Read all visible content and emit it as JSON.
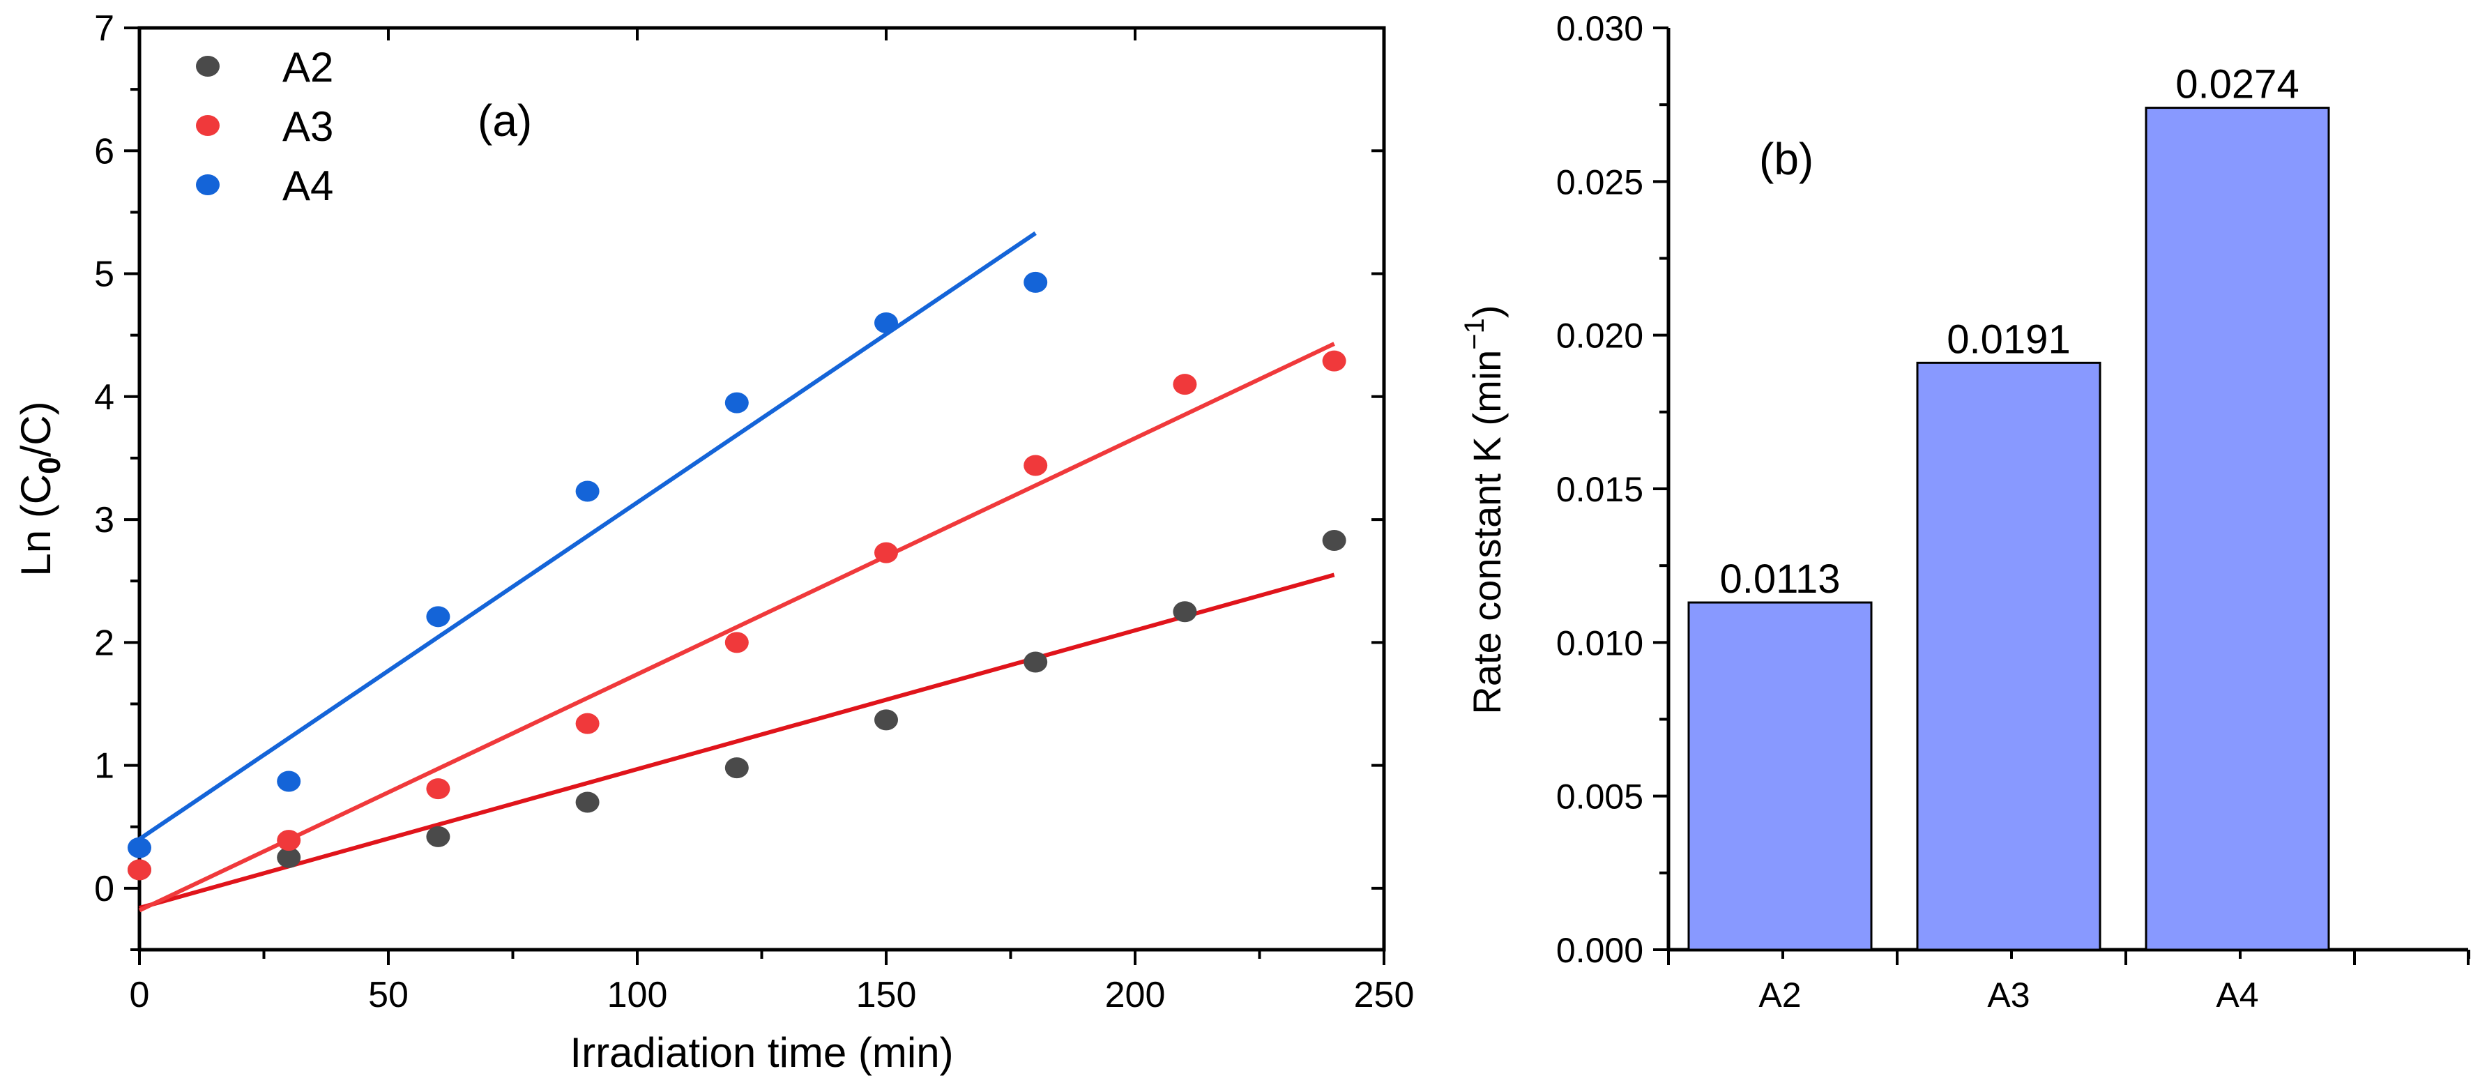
{
  "chart_data": [
    {
      "type": "scatter",
      "panel_label": "(a)",
      "xlabel": "Irradiation time (min)",
      "ylabel": {
        "prefix": "Ln (C",
        "subscript": "0",
        "suffix": "/C)"
      },
      "xlim": [
        0,
        250
      ],
      "ylim": [
        -0.5,
        7
      ],
      "xticks": [
        0,
        50,
        100,
        150,
        200,
        250
      ],
      "yticks": [
        0,
        1,
        2,
        3,
        4,
        5,
        6,
        7
      ],
      "legend_position": "top-left",
      "series": [
        {
          "name": "A2",
          "color": "#4a4a4a",
          "x": [
            0,
            30,
            60,
            90,
            120,
            150,
            180,
            210,
            240
          ],
          "y": [
            0.15,
            0.25,
            0.42,
            0.7,
            0.98,
            1.37,
            1.84,
            2.25,
            2.83
          ],
          "fit": {
            "color": "#e0141b",
            "x": [
              0,
              240
            ],
            "y": [
              -0.16,
              2.55
            ]
          }
        },
        {
          "name": "A3",
          "color": "#f0393b",
          "x": [
            0,
            30,
            60,
            90,
            120,
            150,
            180,
            210,
            240
          ],
          "y": [
            0.15,
            0.39,
            0.81,
            1.34,
            2.0,
            2.73,
            3.44,
            4.1,
            4.29
          ],
          "fit": {
            "color": "#f0393b",
            "x": [
              0,
              240
            ],
            "y": [
              -0.18,
              4.43
            ]
          }
        },
        {
          "name": "A4",
          "color": "#1464d8",
          "x": [
            0,
            30,
            60,
            90,
            120,
            150,
            180
          ],
          "y": [
            0.33,
            0.87,
            2.21,
            3.23,
            3.95,
            4.6,
            4.93
          ],
          "fit": {
            "color": "#1464d8",
            "x": [
              0,
              180
            ],
            "y": [
              0.4,
              5.33
            ]
          }
        }
      ]
    },
    {
      "type": "bar",
      "panel_label": "(b)",
      "ylabel": {
        "text": "Rate constant K (min",
        "superscript": "−1",
        "suffix": ")"
      },
      "categories": [
        "A2",
        "A3",
        "A4"
      ],
      "values": [
        0.0113,
        0.0191,
        0.0274
      ],
      "value_labels": [
        "0.0113",
        "0.0191",
        "0.0274"
      ],
      "ylim": [
        0,
        0.03
      ],
      "yticks": [
        "0.000",
        "0.005",
        "0.010",
        "0.015",
        "0.020",
        "0.025",
        "0.030"
      ],
      "bar_color": "#8899ff"
    }
  ]
}
